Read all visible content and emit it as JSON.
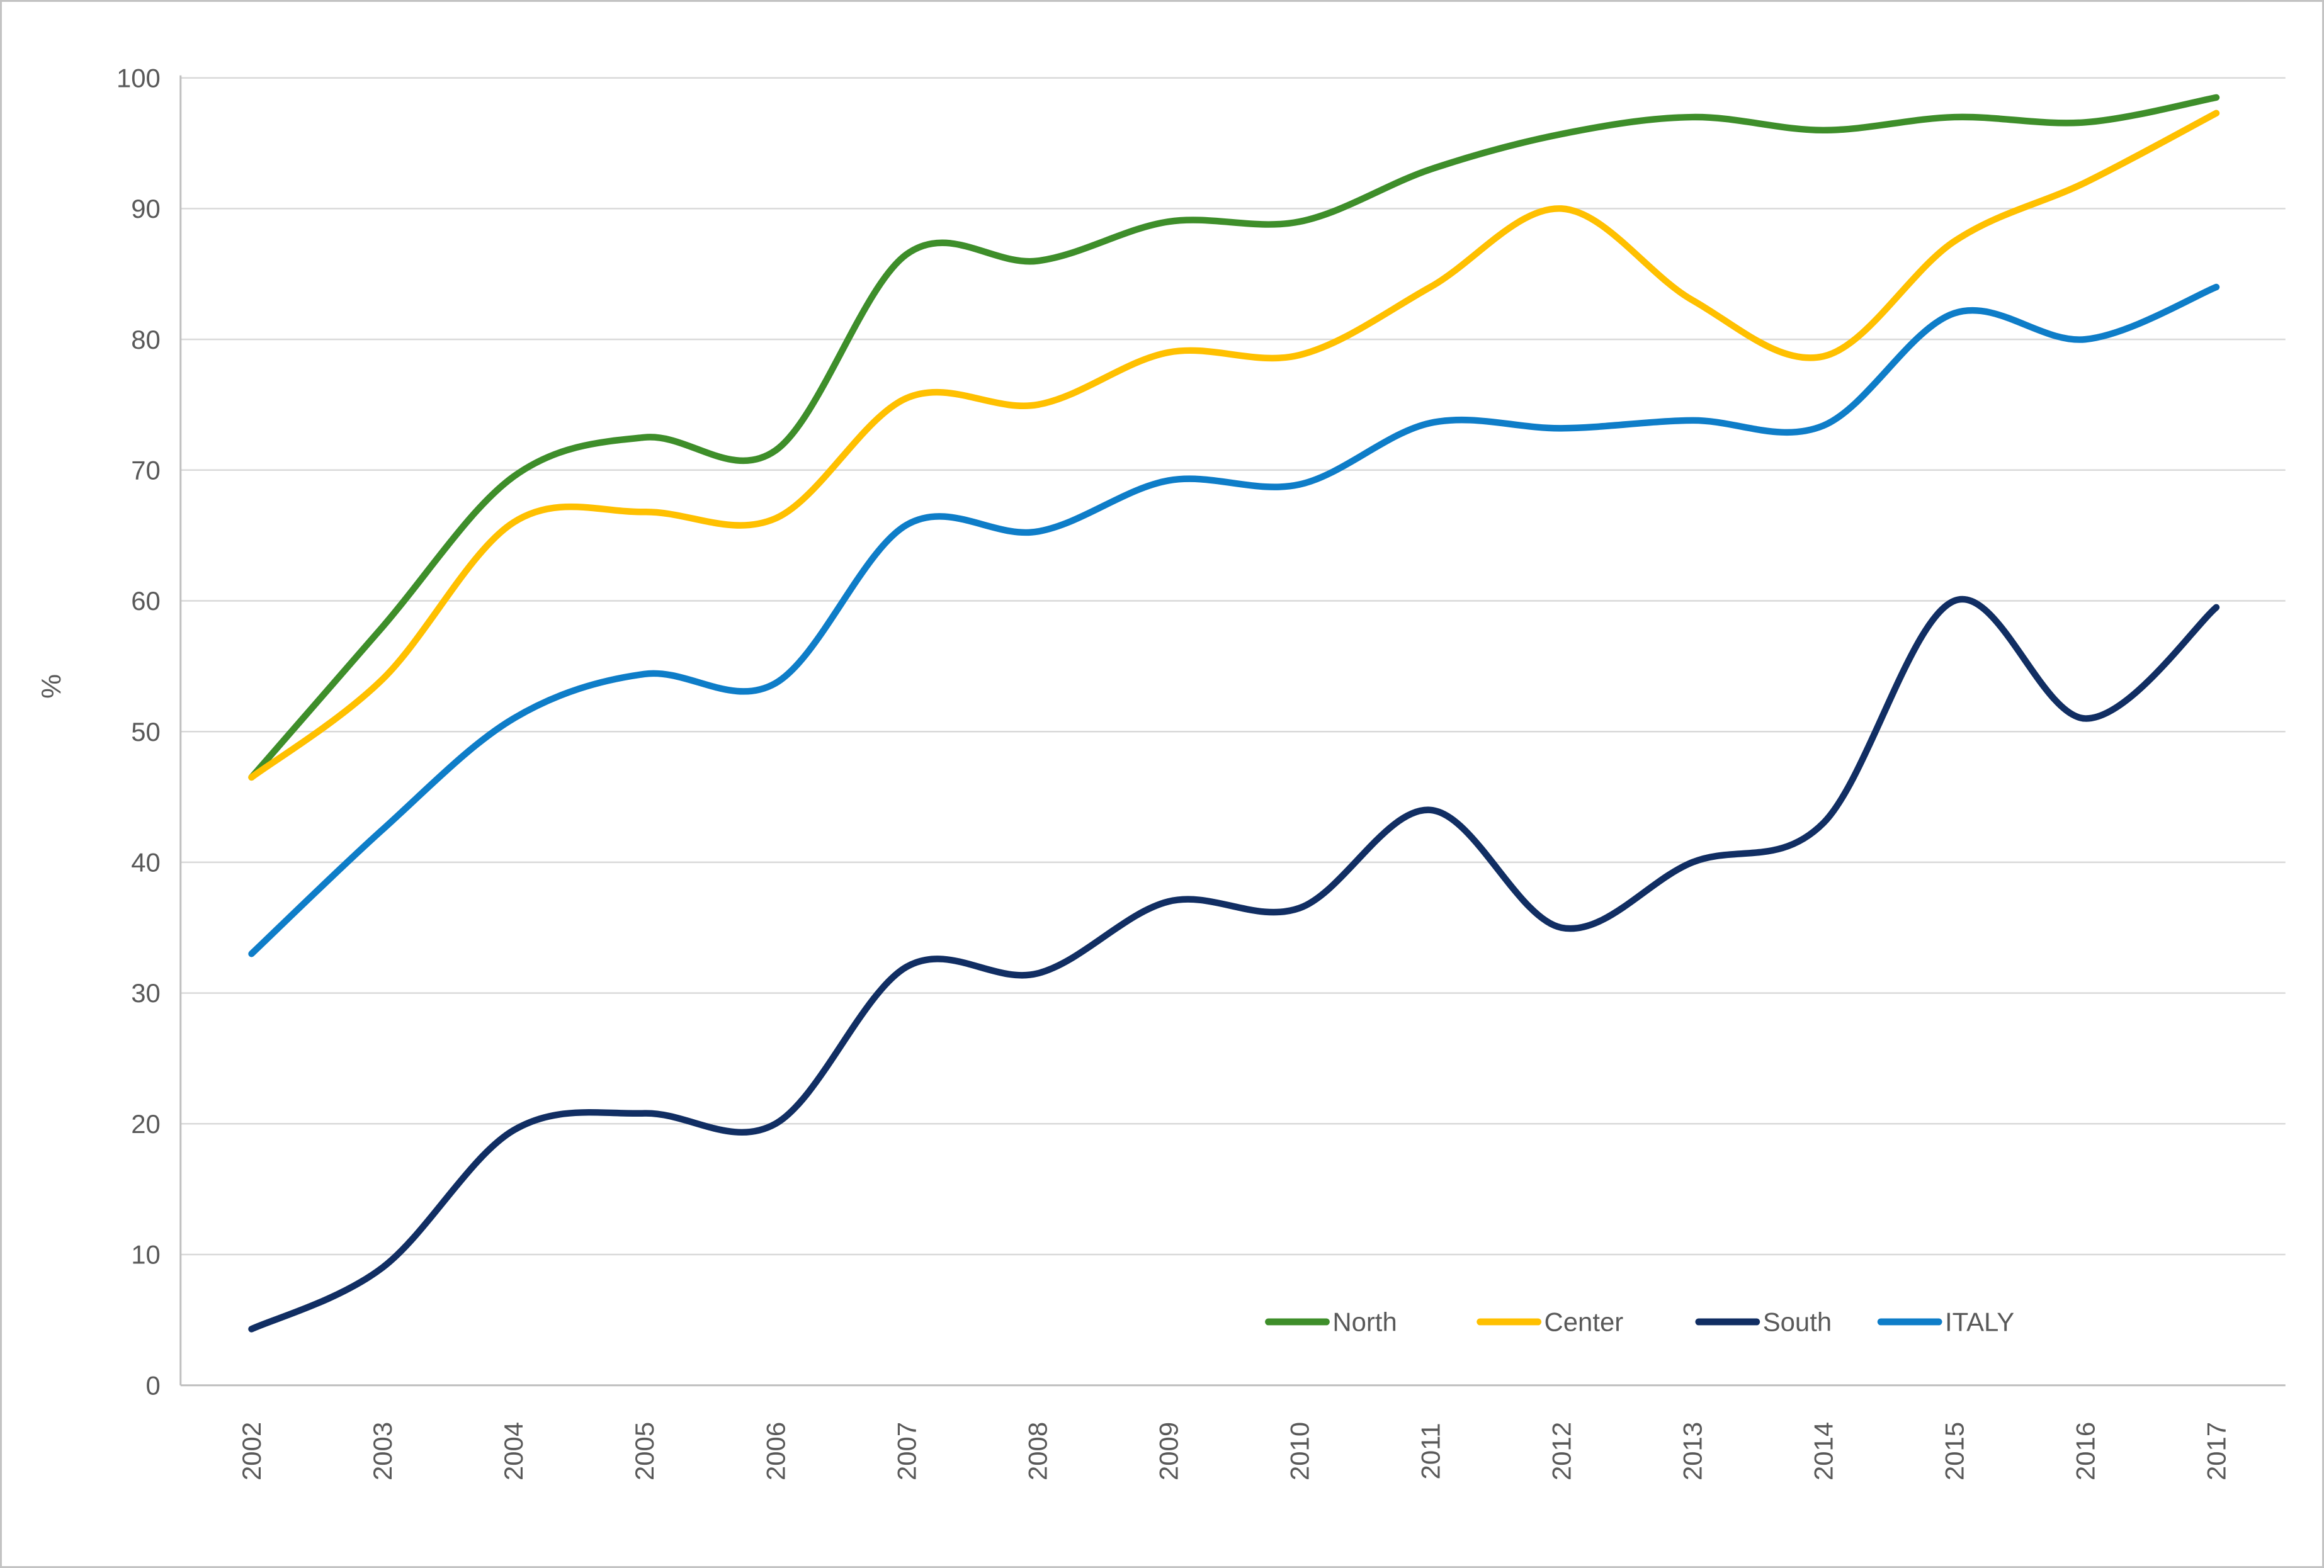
{
  "chart_data": {
    "type": "line",
    "title": "",
    "xlabel": "",
    "ylabel": "%",
    "ylim": [
      0,
      100
    ],
    "ytick_step": 10,
    "yticks": [
      0,
      10,
      20,
      30,
      40,
      50,
      60,
      70,
      80,
      90,
      100
    ],
    "grid": true,
    "smooth": true,
    "legend_position": "inside-bottom-right",
    "categories": [
      2002,
      2003,
      2004,
      2005,
      2006,
      2007,
      2008,
      2009,
      2010,
      2011,
      2012,
      2013,
      2014,
      2015,
      2016,
      2017
    ],
    "series": [
      {
        "name": "North",
        "color": "#3E8E2A",
        "values": [
          46.5,
          58.0,
          69.5,
          72.5,
          71.5,
          86.5,
          86.0,
          89.0,
          89.0,
          93.0,
          95.7,
          97.0,
          96.0,
          97.0,
          96.6,
          98.5
        ]
      },
      {
        "name": "Center",
        "color": "#FFC000",
        "values": [
          46.5,
          54.0,
          66.0,
          66.8,
          66.3,
          75.5,
          75.0,
          79.0,
          78.8,
          84.0,
          90.0,
          83.0,
          78.7,
          87.5,
          92.0,
          97.3
        ]
      },
      {
        "name": "South",
        "color": "#112E63",
        "values": [
          4.3,
          9.0,
          19.5,
          20.8,
          20.0,
          32.0,
          31.5,
          37.0,
          36.5,
          44.0,
          35.0,
          40.0,
          43.0,
          60.0,
          51.0,
          59.5
        ]
      },
      {
        "name": "ITALY",
        "color": "#0E7DC8",
        "values": [
          33.0,
          42.5,
          51.0,
          54.4,
          53.7,
          65.8,
          65.3,
          69.2,
          68.9,
          73.6,
          73.2,
          73.8,
          73.4,
          82.0,
          80.0,
          84.0
        ]
      }
    ],
    "colors": {
      "grid": "#D9D9D9",
      "axis": "#BFBFBF",
      "text": "#595959",
      "background": "#FFFFFF"
    }
  }
}
